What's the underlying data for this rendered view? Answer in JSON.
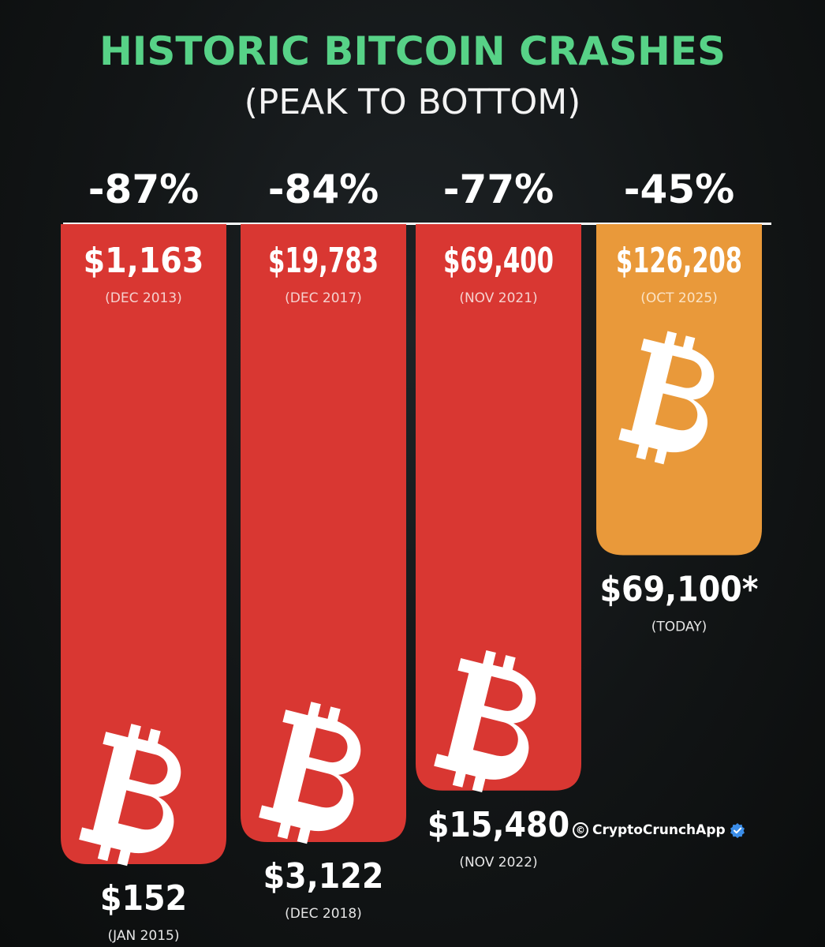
{
  "chart_data": {
    "type": "bar",
    "title": "HISTORIC BITCOIN CRASHES",
    "subtitle": "(PEAK TO BOTTOM)",
    "y_scale": "percent drawdown from peak (bar length)",
    "categories": [
      "DEC 2013 – JAN 2015",
      "DEC 2017 – DEC 2018",
      "NOV 2021 – NOV 2022",
      "OCT 2025 – TODAY"
    ],
    "drawdowns": [
      "-87%",
      "-84%",
      "-77%",
      "-45%"
    ],
    "values": [
      87,
      84,
      77,
      45
    ],
    "peaks": [
      {
        "price": "$1,163",
        "date": "(DEC 2013)"
      },
      {
        "price": "$19,783",
        "date": "(DEC 2017)"
      },
      {
        "price": "$69,400",
        "date": "(NOV 2021)"
      },
      {
        "price": "$126,208",
        "date": "(OCT 2025)"
      }
    ],
    "bottoms": [
      {
        "price": "$152",
        "date": "(JAN 2015)"
      },
      {
        "price": "$3,122",
        "date": "(DEC 2018)"
      },
      {
        "price": "$15,480",
        "date": "(NOV 2022)"
      },
      {
        "price": "$69,100*",
        "date": "(TODAY)"
      }
    ],
    "bar_colors": [
      "#d93732",
      "#d93732",
      "#d93732",
      "#e9993a"
    ],
    "icon": "bitcoin-icon"
  },
  "credit": {
    "text": "CryptoCrunchApp",
    "icon": "copyright-icon",
    "badge_icon": "verified-badge-icon"
  },
  "colors": {
    "title": "#57d287",
    "subtitle": "#f3f3f3",
    "text": "#ffffff",
    "background": "#121516"
  }
}
